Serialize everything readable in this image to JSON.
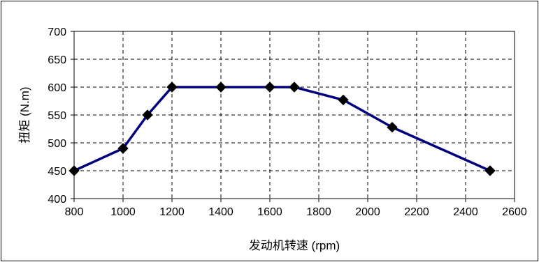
{
  "chart_data": {
    "type": "line",
    "title": "",
    "xlabel": "发动机转速 (rpm)",
    "ylabel": "扭矩 (N.m)",
    "xlim": [
      800,
      2600
    ],
    "ylim": [
      400,
      700
    ],
    "x_ticks": [
      800,
      1000,
      1200,
      1400,
      1600,
      1800,
      2000,
      2200,
      2400,
      2600
    ],
    "y_ticks": [
      400,
      450,
      500,
      550,
      600,
      650,
      700
    ],
    "grid": true,
    "legend": "none",
    "series": [
      {
        "x": [
          800,
          1000,
          1100,
          1200,
          1400,
          1600,
          1700,
          1900,
          2100,
          2500
        ],
        "y": [
          450,
          490,
          550,
          600,
          600,
          600,
          600,
          577,
          528,
          450
        ],
        "color": "#00007f",
        "marker": "diamond",
        "marker_color": "#000000"
      }
    ]
  }
}
